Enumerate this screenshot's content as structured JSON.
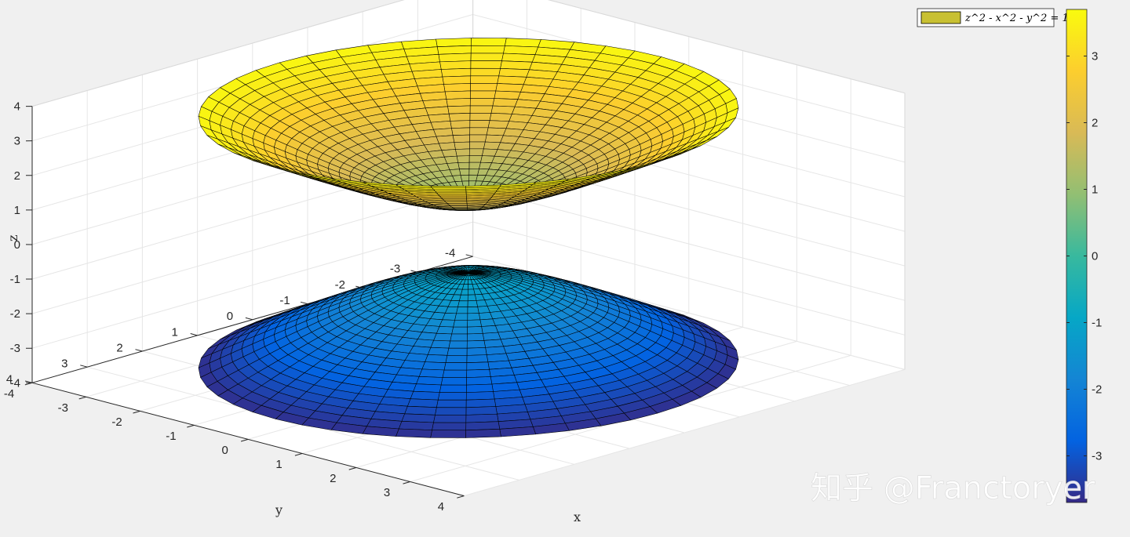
{
  "chart_data": {
    "type": "surface3d",
    "title": "",
    "xlabel": "x",
    "ylabel": "y",
    "zlabel": "z",
    "xlim": [
      -4,
      4
    ],
    "ylim": [
      -4,
      4
    ],
    "zlim": [
      -4,
      4
    ],
    "xticks": [
      "-4",
      "-3",
      "-2",
      "-1",
      "0",
      "1",
      "2",
      "3",
      "4"
    ],
    "yticks": [
      "-4",
      "-3",
      "-2",
      "-1",
      "0",
      "1",
      "2",
      "3",
      "4"
    ],
    "zticks": [
      "-4",
      "-3",
      "-2",
      "-1",
      "0",
      "1",
      "2",
      "3",
      "4"
    ],
    "grid": true,
    "surface": {
      "equation": "z² − x² − y² = 1",
      "legend_label": "z^2 - x^2 - y^2 = 1",
      "r_max": 3.5,
      "radial_rings": 25,
      "angular_segments": 48,
      "upper_sheet_z_range": [
        1,
        3.64
      ],
      "lower_sheet_z_range": [
        -3.64,
        -1
      ],
      "colormap": "parula",
      "edge_color": "#000000"
    },
    "colorbar": {
      "ticks": [
        "-3",
        "-2",
        "-1",
        "0",
        "1",
        "2",
        "3"
      ],
      "range": [
        -3.7,
        3.7
      ]
    },
    "legend": {
      "placement": "top-right",
      "swatch_color": "#c8c032"
    }
  },
  "watermark": "知乎 @Franctoryer"
}
